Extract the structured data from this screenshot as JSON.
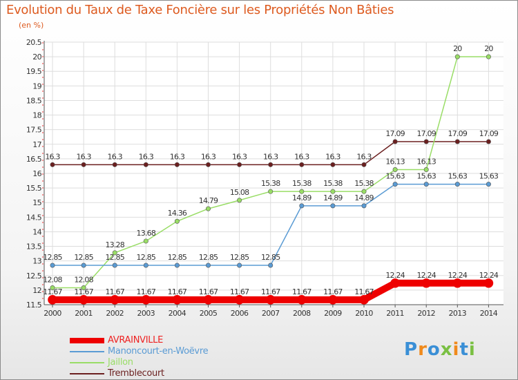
{
  "title": "Evolution du Taux de Taxe Foncière sur les Propriétés Non Bâties",
  "unit_label": "(en %)",
  "logo_text": "Proxiti",
  "chart_data": {
    "type": "line",
    "title": "Evolution du Taux de Taxe Foncière sur les Propriétés Non Bâties",
    "ylabel": "(en %)",
    "xlabel": "",
    "ylim": [
      11.5,
      20.5
    ],
    "yticks": [
      11.5,
      12,
      12.5,
      13,
      13.5,
      14,
      14.5,
      15,
      15.5,
      16,
      16.5,
      17,
      17.5,
      18,
      18.5,
      19,
      19.5,
      20,
      20.5
    ],
    "categories": [
      "2000",
      "2001",
      "2002",
      "2003",
      "2004",
      "2005",
      "2006",
      "2007",
      "2008",
      "2009",
      "2010",
      "2011",
      "2012",
      "2013",
      "2014"
    ],
    "grid": true,
    "legend_position": "bottom-left",
    "series": [
      {
        "name": "Tremblecourt",
        "color": "#6b1f1f",
        "lineWidth": 1.5,
        "dot": 3.2,
        "values": [
          16.3,
          16.3,
          16.3,
          16.3,
          16.3,
          16.3,
          16.3,
          16.3,
          16.3,
          16.3,
          16.3,
          17.09,
          17.09,
          17.09,
          17.09
        ],
        "labels": [
          "16.3",
          "16.3",
          "16.3",
          "16.3",
          "16.3",
          "16.3",
          "16.3",
          "16.3",
          "16.3",
          "16.3",
          "16.3",
          "17.09",
          "17.09",
          "17.09",
          "17.09"
        ]
      },
      {
        "name": "Jaillon",
        "color": "#99dd66",
        "lineWidth": 1.5,
        "dot": 3.2,
        "values": [
          12.08,
          12.08,
          13.28,
          13.68,
          14.36,
          14.79,
          15.08,
          15.38,
          15.38,
          15.38,
          15.38,
          16.13,
          16.13,
          20,
          20
        ],
        "labels": [
          "12.08",
          "12.08",
          "13.28",
          "13.68",
          "14.36",
          "14.79",
          "15.08",
          "15.38",
          "15.38",
          "15.38",
          "15.38",
          "16.13",
          "16.13",
          "20",
          "20"
        ]
      },
      {
        "name": "Manoncourt-en-Woëvre",
        "color": "#5a9bd4",
        "lineWidth": 1.5,
        "dot": 3.2,
        "values": [
          12.85,
          12.85,
          12.85,
          12.85,
          12.85,
          12.85,
          12.85,
          12.85,
          14.89,
          14.89,
          14.89,
          15.63,
          15.63,
          15.63,
          15.63
        ],
        "labels": [
          "12.85",
          "12.85",
          "12.85",
          "12.85",
          "12.85",
          "12.85",
          "12.85",
          "12.85",
          "14.89",
          "14.89",
          "14.89",
          "15.63",
          "15.63",
          "15.63",
          "15.63"
        ]
      },
      {
        "name": "AVRAINVILLE",
        "color": "#ee0000",
        "lineWidth": 10,
        "dot": 6.5,
        "values": [
          11.67,
          11.67,
          11.67,
          11.67,
          11.67,
          11.67,
          11.67,
          11.67,
          11.67,
          11.67,
          11.67,
          12.24,
          12.24,
          12.24,
          12.24
        ],
        "labels": [
          "11.67",
          "11.67",
          "11.67",
          "11.67",
          "11.67",
          "11.67",
          "11.67",
          "11.67",
          "11.67",
          "11.67",
          "11.67",
          "12.24",
          "12.24",
          "12.24",
          "12.24"
        ]
      }
    ],
    "legend_order": [
      "AVRAINVILLE",
      "Manoncourt-en-Woëvre",
      "Jaillon",
      "Tremblecourt"
    ]
  }
}
